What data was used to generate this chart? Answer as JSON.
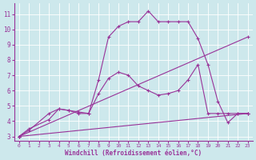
{
  "xlabel": "Windchill (Refroidissement éolien,°C)",
  "background_color": "#cde8ec",
  "grid_color": "#b0d8de",
  "line_color": "#993399",
  "xlim": [
    -0.5,
    23.5
  ],
  "ylim": [
    2.7,
    11.7
  ],
  "xticks": [
    0,
    1,
    2,
    3,
    4,
    5,
    6,
    7,
    8,
    9,
    10,
    11,
    12,
    13,
    14,
    15,
    16,
    17,
    18,
    19,
    20,
    21,
    22,
    23
  ],
  "yticks": [
    3,
    4,
    5,
    6,
    7,
    8,
    9,
    10,
    11
  ],
  "series": [
    {
      "x": [
        0,
        1,
        3,
        4,
        5,
        6,
        7,
        8,
        9,
        10,
        11,
        12,
        13,
        14,
        15,
        16,
        17,
        18,
        19,
        20,
        21,
        22,
        23
      ],
      "y": [
        3.0,
        3.5,
        4.1,
        4.8,
        4.7,
        4.6,
        4.5,
        6.7,
        9.5,
        10.2,
        10.5,
        10.5,
        11.2,
        10.5,
        10.5,
        10.5,
        10.5,
        9.4,
        7.7,
        5.3,
        3.9,
        4.5,
        4.5
      ]
    },
    {
      "x": [
        0,
        1,
        3,
        4,
        5,
        6,
        7,
        8,
        9,
        10,
        11,
        12,
        13,
        14,
        15,
        16,
        17,
        18,
        19,
        20,
        21,
        22,
        23
      ],
      "y": [
        3.0,
        3.4,
        4.5,
        4.8,
        4.7,
        4.5,
        4.5,
        5.8,
        6.8,
        7.2,
        7.0,
        6.3,
        6.0,
        5.7,
        5.8,
        6.0,
        6.7,
        7.7,
        4.5,
        4.5,
        4.5,
        4.5,
        4.5
      ]
    },
    {
      "x": [
        0,
        23
      ],
      "y": [
        3.0,
        9.5
      ]
    },
    {
      "x": [
        0,
        23
      ],
      "y": [
        3.0,
        4.5
      ]
    }
  ]
}
